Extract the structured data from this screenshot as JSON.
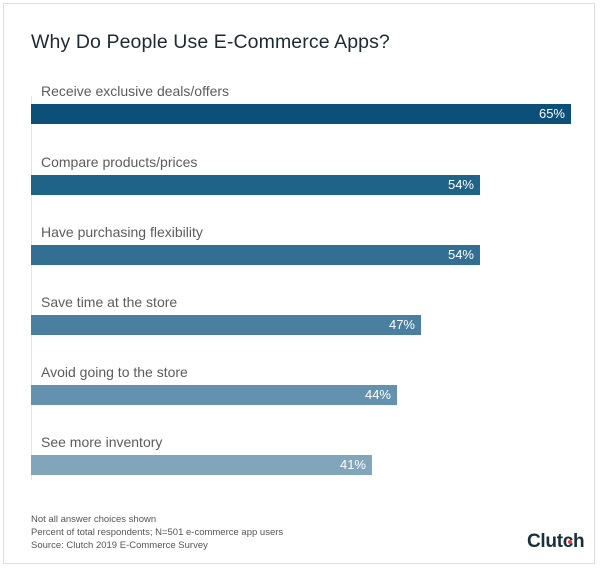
{
  "chart_data": {
    "type": "bar",
    "orientation": "horizontal",
    "title": "Why Do People Use E-Commerce Apps?",
    "categories": [
      "Receive exclusive deals/offers",
      "Compare products/prices",
      "Have purchasing flexibility",
      "Save time at the store",
      "Avoid going to the store",
      "See more inventory"
    ],
    "values": [
      65,
      54,
      54,
      47,
      44,
      41
    ],
    "value_labels": [
      "65%",
      "54%",
      "54%",
      "47%",
      "44%",
      "41%"
    ],
    "colors": [
      "#0c4f78",
      "#1f6388",
      "#336f93",
      "#4a7fa0",
      "#6491ae",
      "#81a6bc"
    ],
    "xlabel": "",
    "ylabel": "",
    "unit": "%",
    "grid": false,
    "legend": null
  },
  "footer": {
    "notes": [
      "Not all answer choices shown",
      "Percent of total respondents; N=501 e-commerce app users",
      "Source: Clutch 2019 E-Commerce Survey"
    ],
    "logo": "Clutch"
  }
}
